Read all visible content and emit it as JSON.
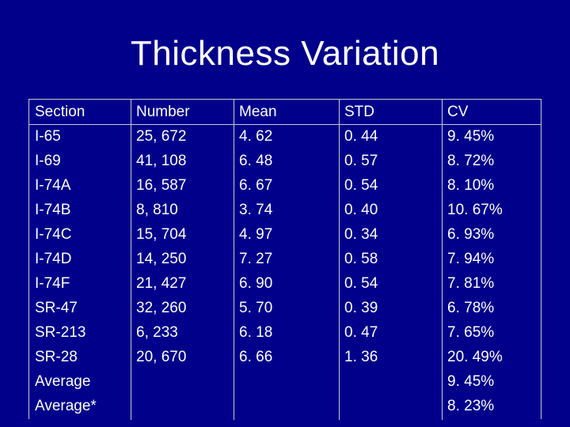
{
  "slide": {
    "title": "Thickness Variation"
  },
  "table": {
    "headers": [
      "Section",
      "Number",
      "Mean",
      "STD",
      "CV"
    ],
    "rows": [
      [
        "I-65",
        "25, 672",
        "4. 62",
        "0. 44",
        "9. 45%"
      ],
      [
        "I-69",
        "41, 108",
        "6. 48",
        "0. 57",
        "8. 72%"
      ],
      [
        "I-74A",
        "16, 587",
        "6. 67",
        "0. 54",
        "8. 10%"
      ],
      [
        "I-74B",
        "8, 810",
        "3. 74",
        "0. 40",
        "10. 67%"
      ],
      [
        "I-74C",
        "15, 704",
        "4. 97",
        "0. 34",
        "6. 93%"
      ],
      [
        "I-74D",
        "14, 250",
        "7. 27",
        "0. 58",
        "7. 94%"
      ],
      [
        "I-74F",
        "21, 427",
        "6. 90",
        "0. 54",
        "7. 81%"
      ],
      [
        "SR-47",
        "32, 260",
        "5. 70",
        "0. 39",
        "6. 78%"
      ],
      [
        "SR-213",
        "6, 233",
        "6. 18",
        "0. 47",
        "7. 65%"
      ],
      [
        "SR-28",
        "20, 670",
        "6. 66",
        "1. 36",
        "20. 49%"
      ],
      [
        "Average",
        "",
        "",
        "",
        "9. 45%"
      ],
      [
        "Average*",
        "",
        "",
        "",
        "8. 23%"
      ]
    ]
  }
}
